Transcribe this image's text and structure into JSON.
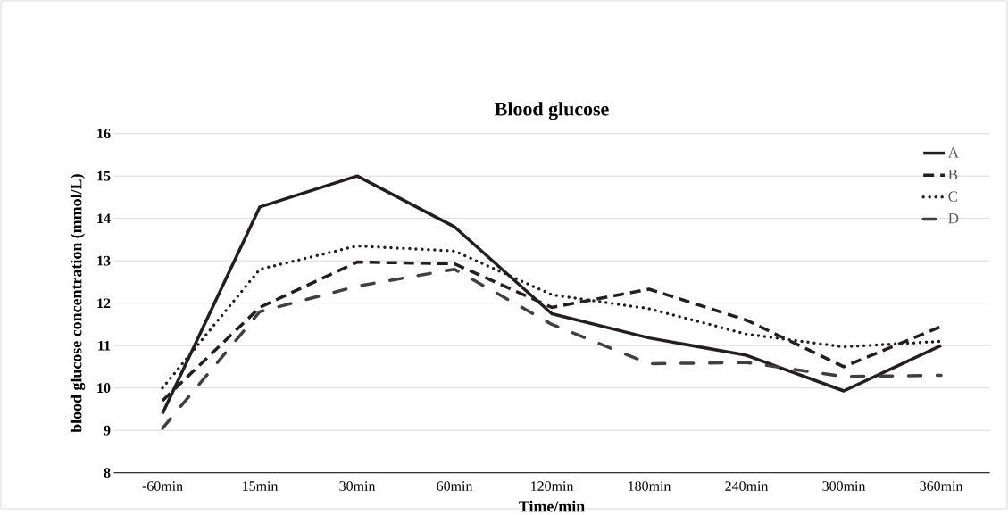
{
  "chart_data": {
    "type": "line",
    "title": "Blood glucose",
    "xlabel": "Time/min",
    "ylabel": "blood glucose concentration (mmol/L)",
    "categories": [
      "-60min",
      "15min",
      "30min",
      "60min",
      "120min",
      "180min",
      "240min",
      "300min",
      "360min"
    ],
    "series": [
      {
        "name": "A",
        "color": "#231f20",
        "line_style": "solid",
        "values": [
          9.4,
          14.27,
          15.0,
          13.8,
          11.75,
          11.18,
          10.77,
          9.93,
          11.0
        ]
      },
      {
        "name": "B",
        "color": "#231f20",
        "line_style": "dashed",
        "values": [
          9.7,
          11.9,
          12.97,
          12.93,
          11.9,
          12.33,
          11.6,
          10.5,
          11.45
        ]
      },
      {
        "name": "C",
        "color": "#231f20",
        "line_style": "dotted",
        "values": [
          10.0,
          12.8,
          13.35,
          13.23,
          12.2,
          11.87,
          11.27,
          10.97,
          11.1
        ]
      },
      {
        "name": "D",
        "color": "#404040",
        "line_style": "dashdot",
        "values": [
          9.05,
          11.8,
          12.4,
          12.8,
          11.5,
          10.57,
          10.6,
          10.27,
          10.3
        ]
      }
    ],
    "ylim": [
      8,
      16
    ],
    "yticks": [
      8,
      9,
      10,
      11,
      12,
      13,
      14,
      15,
      16
    ],
    "grid": "y",
    "legend": "top right",
    "marker": "none"
  }
}
